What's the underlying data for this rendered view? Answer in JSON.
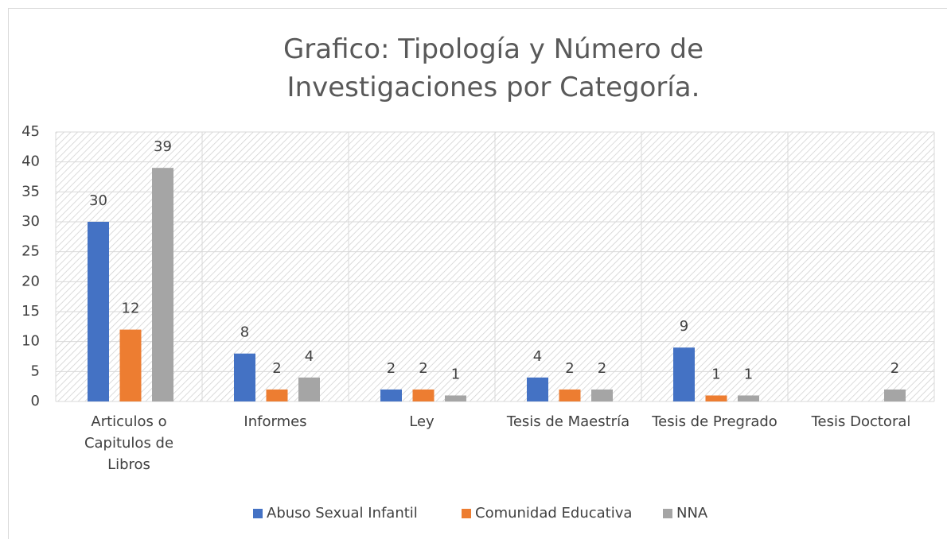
{
  "chart_data": {
    "type": "bar",
    "title": "Grafico: Tipología y Número de Investigaciones por Categoría.",
    "categories": [
      "Articulos o Capitulos de Libros",
      "Informes",
      "Ley",
      "Tesis de Maestría",
      "Tesis de Pregrado",
      "Tesis Doctoral"
    ],
    "series": [
      {
        "name": "Abuso Sexual Infantil",
        "color": "#4472c4",
        "values": [
          30,
          8,
          2,
          4,
          9,
          null
        ]
      },
      {
        "name": "Comunidad Educativa",
        "color": "#ed7d31",
        "values": [
          12,
          2,
          2,
          2,
          1,
          null
        ]
      },
      {
        "name": "NNA",
        "color": "#a5a5a5",
        "values": [
          39,
          4,
          1,
          2,
          1,
          2
        ]
      }
    ],
    "ylim": [
      0,
      45
    ],
    "yticks": [
      0,
      5,
      10,
      15,
      20,
      25,
      30,
      35,
      40,
      45
    ],
    "grid": true,
    "legend": "bottom"
  }
}
